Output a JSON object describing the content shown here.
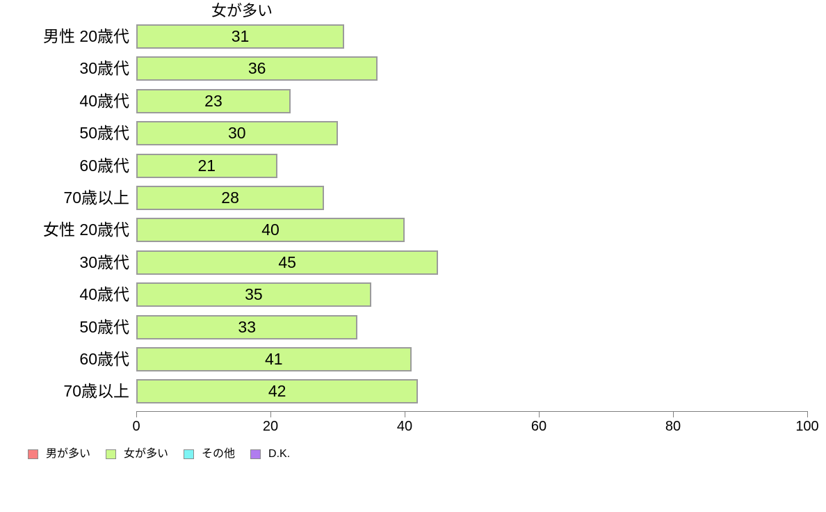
{
  "chart_data": {
    "type": "bar",
    "orientation": "horizontal",
    "title": "女が多い",
    "categories": [
      "男性 20歳代",
      "30歳代",
      "40歳代",
      "50歳代",
      "60歳代",
      "70歳以上",
      "女性 20歳代",
      "30歳代",
      "40歳代",
      "50歳代",
      "60歳代",
      "70歳以上"
    ],
    "values": [
      31,
      36,
      23,
      30,
      21,
      28,
      40,
      45,
      35,
      33,
      41,
      42
    ],
    "xlabel": "",
    "ylabel": "",
    "xlim": [
      0,
      100
    ],
    "x_ticks": [
      0,
      20,
      40,
      60,
      80,
      100
    ],
    "grid": false,
    "value_labels_shown": true,
    "bar_fill": "#cbf98d",
    "bar_border": "#9b9b9b",
    "axis_color": "#808080",
    "legend_position": "bottom-left",
    "legend": [
      {
        "label": "男が多い",
        "color": "#f88080"
      },
      {
        "label": "女が多い",
        "color": "#cbf98d"
      },
      {
        "label": "その他",
        "color": "#7ef4f4"
      },
      {
        "label": "D.K.",
        "color": "#b07cef"
      }
    ]
  }
}
